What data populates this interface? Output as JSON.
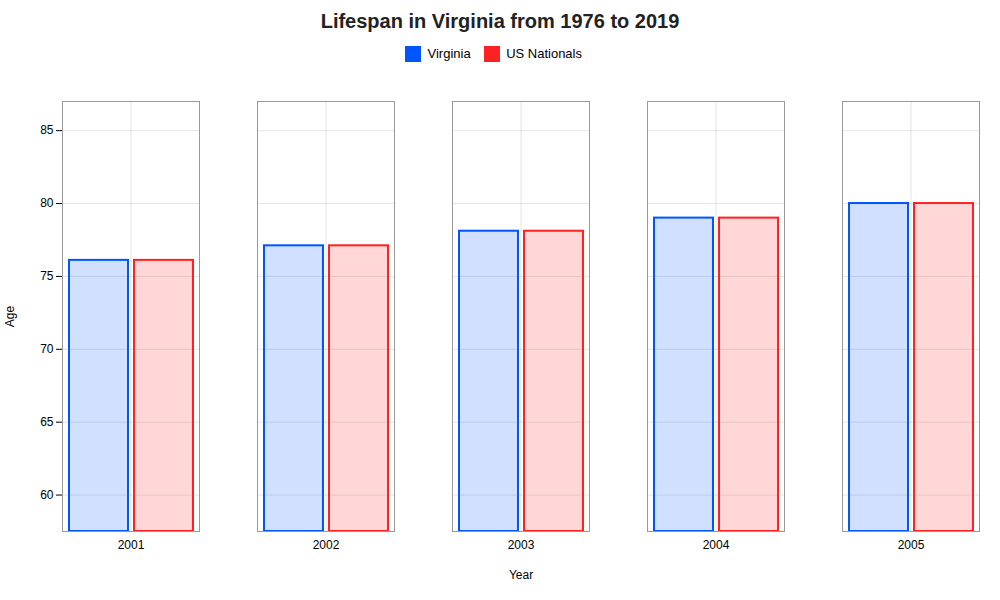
{
  "chart_data": {
    "type": "bar",
    "title": "Lifespan in Virginia from 1976 to 2019",
    "xlabel": "Year",
    "ylabel": "Age",
    "categories": [
      "2001",
      "2002",
      "2003",
      "2004",
      "2005"
    ],
    "series": [
      {
        "name": "Virginia",
        "color": "#0055ff",
        "values": [
          76.1,
          77.1,
          78.1,
          79.0,
          80.0
        ]
      },
      {
        "name": "US Nationals",
        "color": "#ff2222",
        "values": [
          76.1,
          77.1,
          78.1,
          79.0,
          80.0
        ]
      }
    ],
    "ylim": [
      57.5,
      87
    ],
    "yticks": [
      60,
      65,
      70,
      75,
      80,
      85
    ],
    "grid": true,
    "legend": "top"
  }
}
